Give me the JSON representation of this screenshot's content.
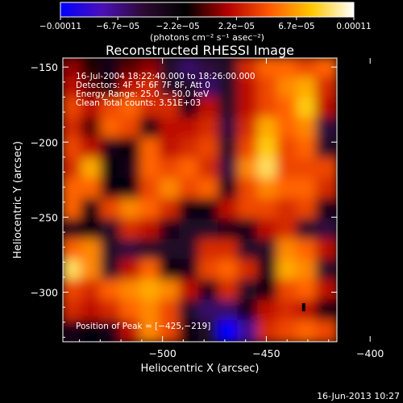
{
  "chart_data": {
    "type": "heatmap",
    "title": "Reconstructed RHESSI Image",
    "xlabel": "Heliocentric X (arcsec)",
    "ylabel": "Heliocentric Y (arcsec)",
    "xlim": [
      -548,
      -416
    ],
    "ylim": [
      -333,
      -144
    ],
    "x_ticks": [
      -500,
      -450,
      -400
    ],
    "x_tick_labels": [
      "−500",
      "−450",
      "−400"
    ],
    "y_ticks": [
      -150,
      -200,
      -250,
      -300
    ],
    "y_tick_labels": [
      "−150",
      "−200",
      "−250",
      "−300"
    ],
    "colorbar": {
      "vmin": -0.00011,
      "vmax": 0.00011,
      "ticks": [
        -0.00011,
        -6.7e-05,
        -2.2e-05,
        2.2e-05,
        6.7e-05,
        0.00011
      ],
      "tick_labels": [
        "−0.00011",
        "−6.7e−05",
        "−2.2e−05",
        "2.2e−05",
        "6.7e−05",
        "0.00011"
      ],
      "unit_text": "(photons cm⁻² s⁻¹ asec⁻²)",
      "colors": [
        "#0000ff",
        "#4b10b8",
        "#2b0a30",
        "#000000",
        "#b40000",
        "#ff5a00",
        "#ffc800",
        "#ffffff"
      ]
    },
    "annotations": [
      "16-Jul-2004 18:22:40.000 to 18:26:00.000",
      "Detectors: 4F 5F 6F 7F 8F, Att 0",
      "Energy Range: 25.0 − 50.0 keV",
      "Clean    Total counts: 3.51E+03"
    ],
    "peak_text": "Position of Peak = [−425,−219]",
    "peak_position": [
      -425,
      -219
    ],
    "grid_values": [
      [
        1,
        -1,
        -3,
        0,
        1,
        -4,
        -6,
        -5,
        -4,
        3,
        5,
        5,
        4,
        5
      ],
      [
        2,
        0,
        -2,
        2,
        3,
        -4,
        -4,
        -6,
        -4,
        2,
        4,
        6,
        7,
        3
      ],
      [
        4,
        2,
        4,
        5,
        3,
        3,
        -3,
        2,
        -4,
        2,
        4,
        5,
        8,
        2
      ],
      [
        3,
        0,
        5,
        4,
        -2,
        2,
        2,
        3,
        -5,
        3,
        7,
        5,
        6,
        -5
      ],
      [
        4,
        2,
        -3,
        -2,
        5,
        2,
        3,
        4,
        -4,
        4,
        8,
        4,
        5,
        -4
      ],
      [
        3,
        7,
        -2,
        -3,
        5,
        4,
        5,
        3,
        -5,
        6,
        9,
        4,
        4,
        4
      ],
      [
        5,
        5,
        -2,
        -2,
        4,
        6,
        4,
        5,
        -3,
        4,
        6,
        5,
        5,
        3
      ],
      [
        5,
        -2,
        4,
        6,
        5,
        3,
        -2,
        -2,
        2,
        4,
        4,
        3,
        4,
        -3
      ],
      [
        -3,
        -2,
        -4,
        3,
        2,
        -3,
        -4,
        -4,
        -3,
        -3,
        2,
        3,
        -4,
        -5
      ],
      [
        5,
        6,
        -4,
        -5,
        -4,
        -4,
        -4,
        3,
        3,
        -4,
        -4,
        6,
        5,
        2
      ],
      [
        9,
        6,
        -4,
        2,
        5,
        -2,
        -3,
        4,
        5,
        3,
        -3,
        7,
        6,
        -4
      ],
      [
        4,
        3,
        5,
        6,
        7,
        6,
        2,
        -3,
        3,
        -4,
        -2,
        4,
        5,
        2
      ],
      [
        3,
        2,
        3,
        5,
        6,
        4,
        -4,
        -6,
        -6,
        -3,
        2,
        3,
        2,
        -2
      ],
      [
        -3,
        -2,
        -3,
        2,
        6,
        4,
        -2,
        -4,
        -11,
        -7,
        3,
        4,
        5,
        4
      ]
    ]
  },
  "footer_date": "16-Jun-2013 10:27"
}
